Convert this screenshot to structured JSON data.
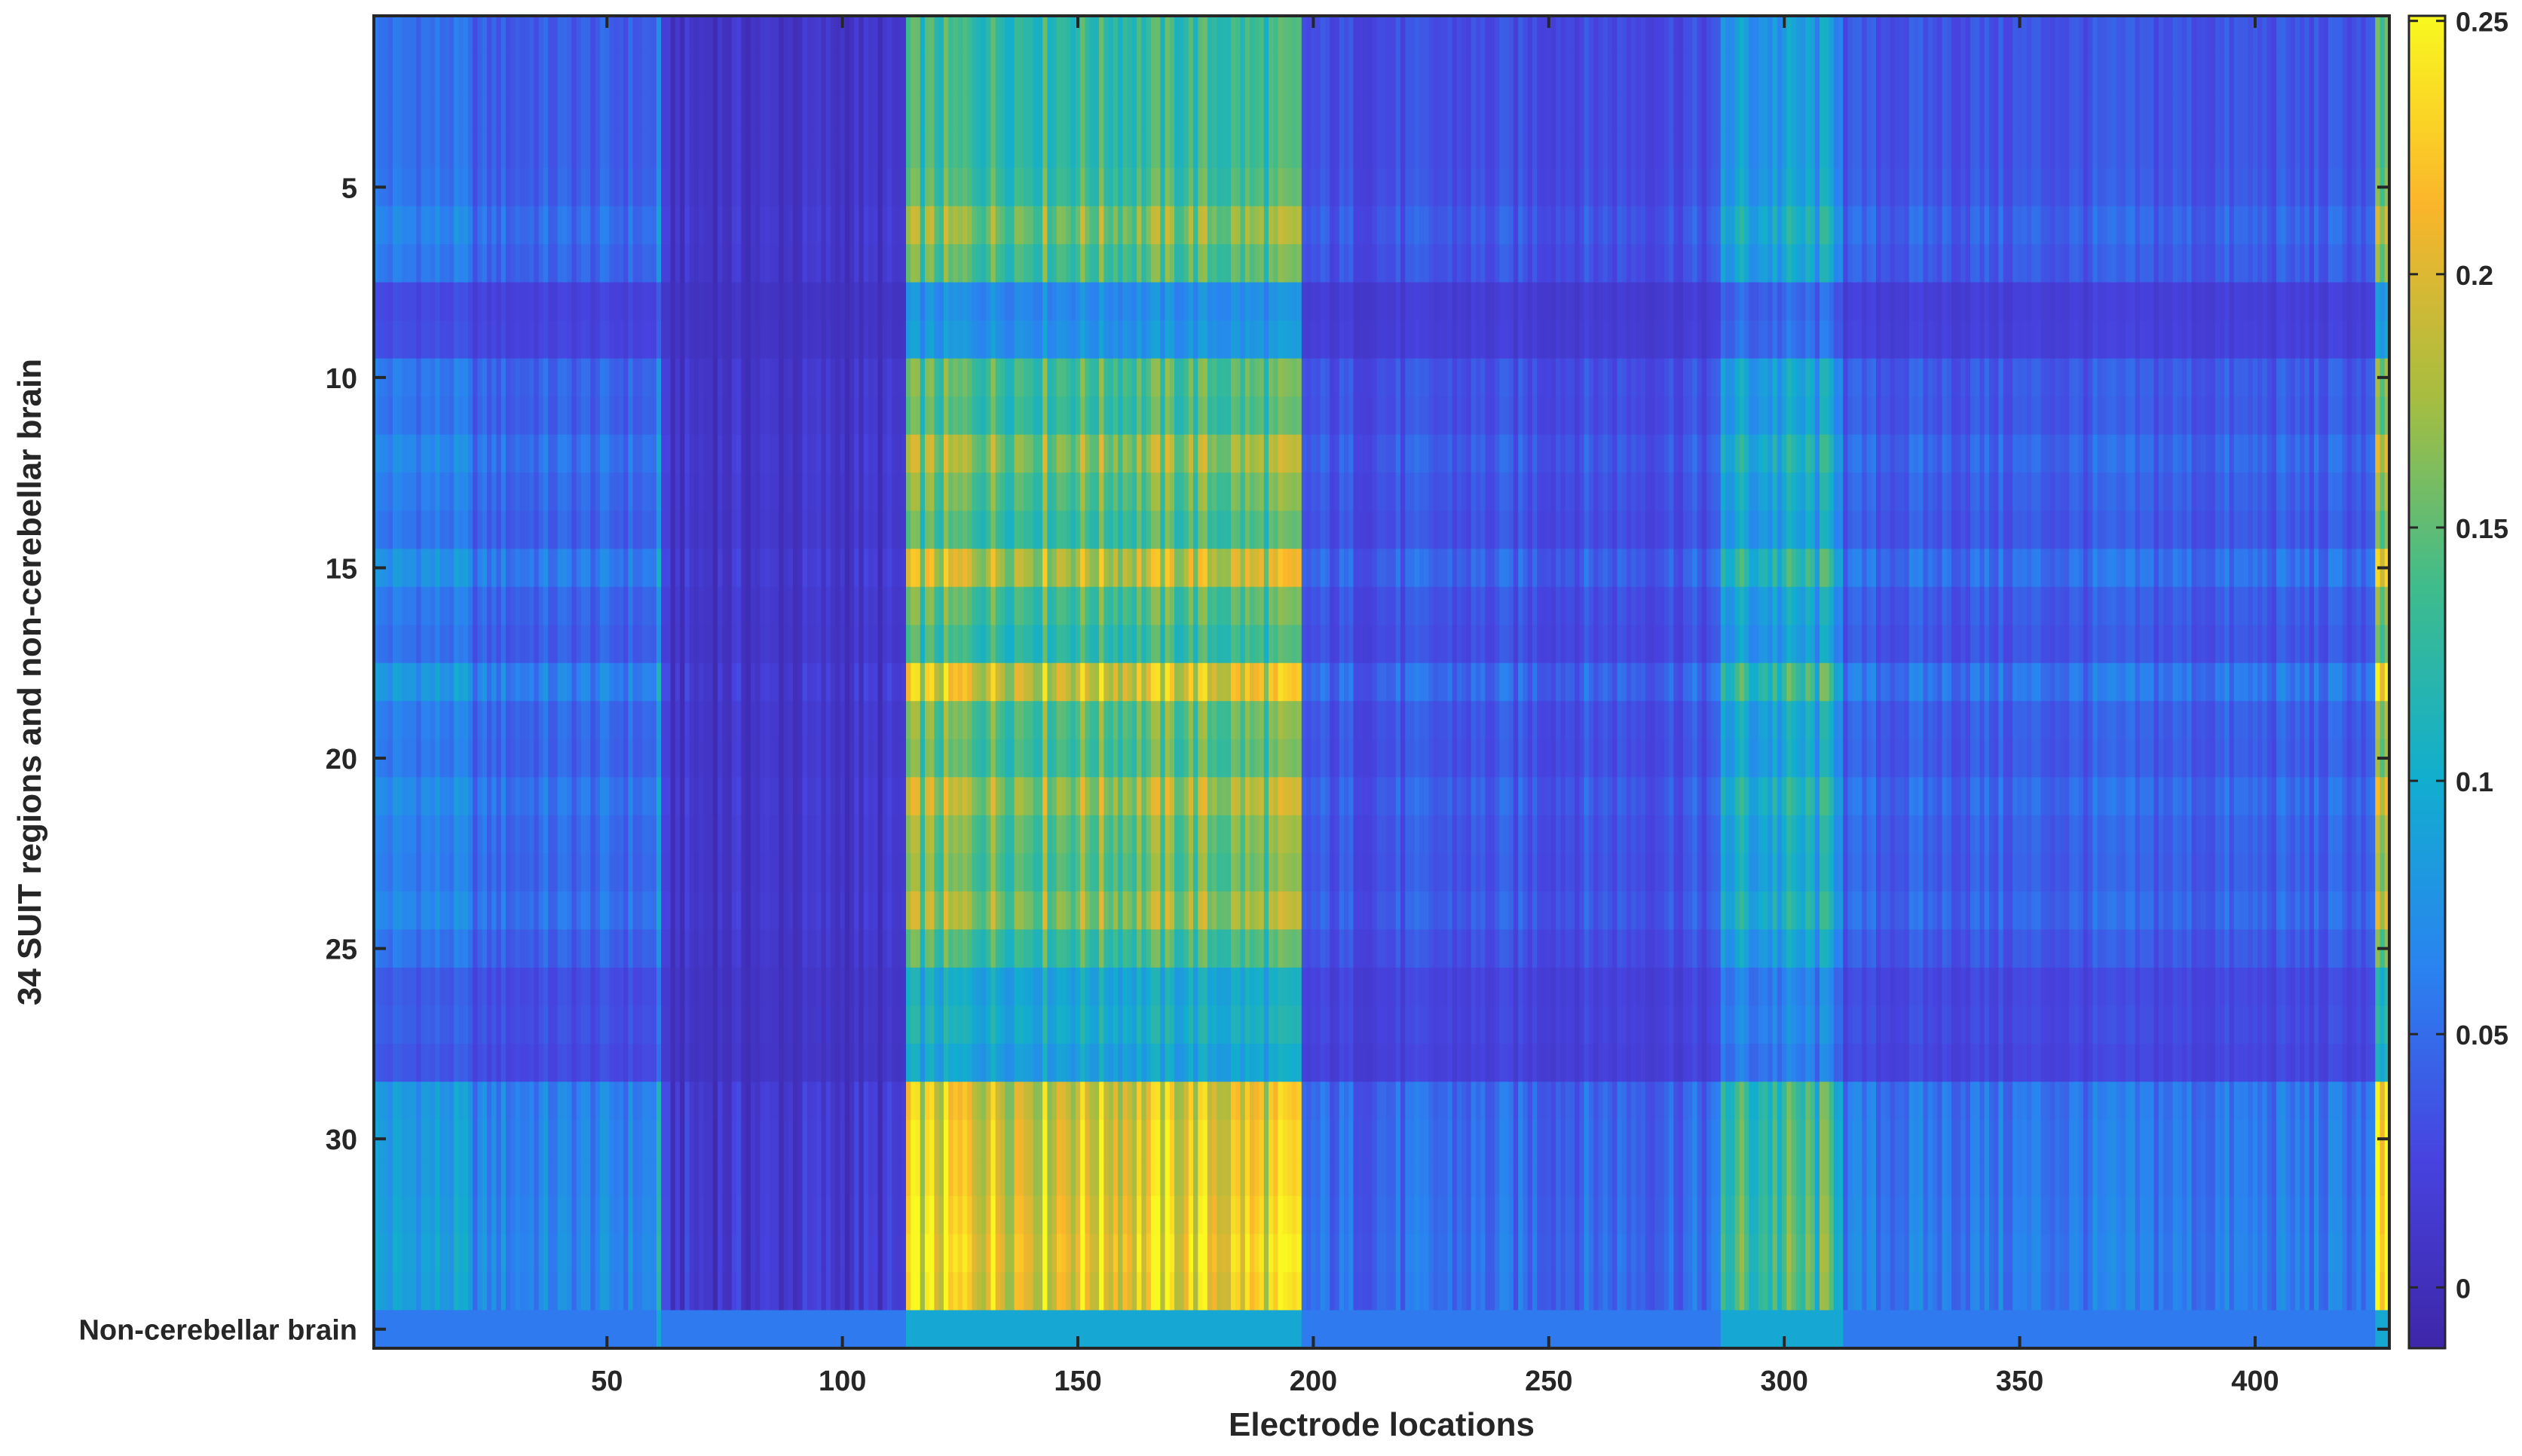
{
  "chart_data": {
    "type": "heatmap",
    "title": "",
    "xlabel": "Electrode locations",
    "ylabel": "34 SUIT regions and non-cerebellar brain",
    "x_range": [
      1,
      428
    ],
    "y_range": [
      1,
      35
    ],
    "x_ticks": [
      50,
      100,
      150,
      200,
      250,
      300,
      350,
      400
    ],
    "y_ticks": [
      {
        "value": 5,
        "label": "5"
      },
      {
        "value": 10,
        "label": "10"
      },
      {
        "value": 15,
        "label": "15"
      },
      {
        "value": 20,
        "label": "20"
      },
      {
        "value": 25,
        "label": "25"
      },
      {
        "value": 30,
        "label": "30"
      },
      {
        "value": 35,
        "label": "Non-cerebellar brain"
      }
    ],
    "colormap": "parula",
    "colormap_stops": [
      "#3e26a8",
      "#4743e0",
      "#2a83f0",
      "#12aece",
      "#3fbc8c",
      "#a7bd40",
      "#fab52b",
      "#f9f820"
    ],
    "colorbar": {
      "range": [
        -0.012,
        0.251
      ],
      "ticks": [
        0,
        0.05,
        0.1,
        0.15,
        0.2,
        0.25
      ],
      "tick_labels": [
        "0",
        "0.05",
        "0.1",
        "0.15",
        "0.2",
        "0.25"
      ]
    },
    "column_segments": [
      {
        "x_start": 1,
        "x_end": 20,
        "base": 0.052,
        "note": "blue"
      },
      {
        "x_start": 21,
        "x_end": 60,
        "base": 0.04,
        "note": "blue"
      },
      {
        "x_start": 61,
        "x_end": 61,
        "base": 0.085,
        "note": "edge spike"
      },
      {
        "x_start": 62,
        "x_end": 113,
        "base": 0.008,
        "note": "dark"
      },
      {
        "x_start": 114,
        "x_end": 197,
        "base": 0.13,
        "note": "high"
      },
      {
        "x_start": 198,
        "x_end": 286,
        "base": 0.03,
        "note": "blue"
      },
      {
        "x_start": 287,
        "x_end": 312,
        "base": 0.08,
        "note": "mid"
      },
      {
        "x_start": 313,
        "x_end": 425,
        "base": 0.035,
        "note": "blue"
      },
      {
        "x_start": 426,
        "x_end": 428,
        "base": 0.14,
        "note": "high"
      }
    ],
    "row_factors": [
      1.0,
      1.0,
      1.0,
      1.0,
      1.05,
      1.25,
      1.1,
      0.55,
      0.6,
      1.1,
      1.05,
      1.3,
      1.15,
      1.05,
      1.45,
      1.1,
      1.0,
      1.55,
      1.15,
      1.1,
      1.35,
      1.2,
      1.15,
      1.3,
      1.05,
      0.75,
      0.8,
      0.7,
      1.55,
      1.6,
      1.6,
      1.65,
      1.7,
      1.65,
      0.85
    ]
  }
}
